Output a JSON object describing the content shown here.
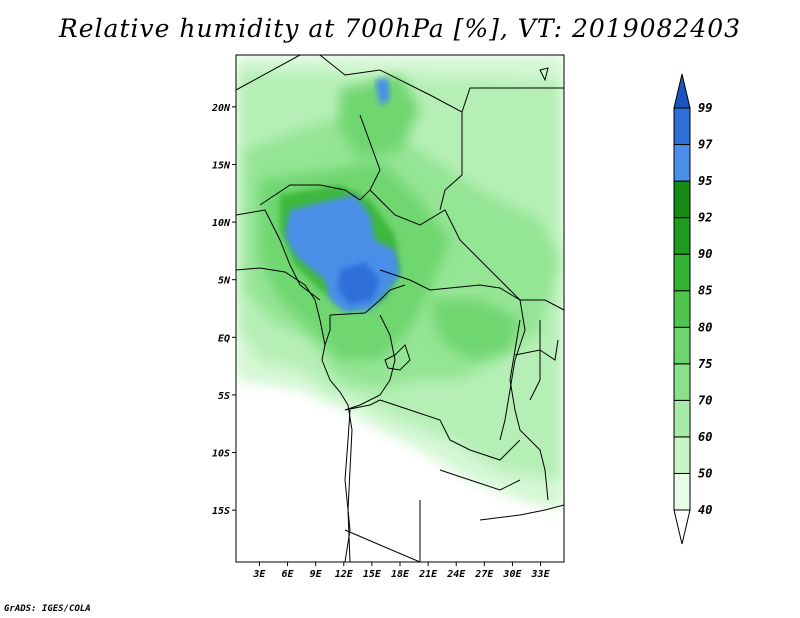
{
  "title": "Relative humidity at 700hPa [%], VT: 2019082403",
  "footer": "GrADS: IGES/COLA",
  "map": {
    "lat_range": [
      -19.5,
      24.5
    ],
    "lon_range": [
      0.5,
      35.5
    ],
    "lat_ticks": [
      {
        "value": 20,
        "label": "20N"
      },
      {
        "value": 15,
        "label": "15N"
      },
      {
        "value": 10,
        "label": "10N"
      },
      {
        "value": 5,
        "label": "5N"
      },
      {
        "value": 0,
        "label": "EQ"
      },
      {
        "value": -5,
        "label": "5S"
      },
      {
        "value": -10,
        "label": "10S"
      },
      {
        "value": -15,
        "label": "15S"
      }
    ],
    "lon_ticks": [
      {
        "value": 3,
        "label": "3E"
      },
      {
        "value": 6,
        "label": "6E"
      },
      {
        "value": 9,
        "label": "9E"
      },
      {
        "value": 12,
        "label": "12E"
      },
      {
        "value": 15,
        "label": "15E"
      },
      {
        "value": 18,
        "label": "18E"
      },
      {
        "value": 21,
        "label": "21E"
      },
      {
        "value": 24,
        "label": "24E"
      },
      {
        "value": 27,
        "label": "27E"
      },
      {
        "value": 30,
        "label": "30E"
      },
      {
        "value": 33,
        "label": "33E"
      }
    ]
  },
  "colorbar": {
    "levels": [
      "40",
      "50",
      "60",
      "70",
      "75",
      "80",
      "85",
      "90",
      "92",
      "95",
      "97",
      "99"
    ],
    "colors": [
      "#ffffff",
      "#e6fce6",
      "#c8f5c8",
      "#a8eba8",
      "#8be08b",
      "#6dd56d",
      "#4ec64e",
      "#33b233",
      "#1f9c1f",
      "#158a15",
      "#4a8fe8",
      "#2f6fd8",
      "#1a55c0"
    ]
  }
}
